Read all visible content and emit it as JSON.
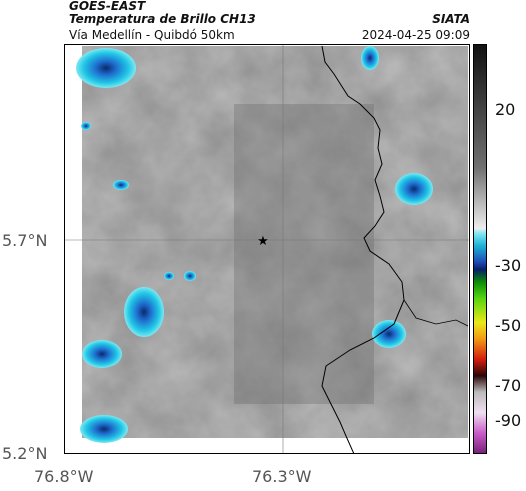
{
  "header": {
    "satellite": "GOES-EAST",
    "product": "Temperatura de Brillo CH13",
    "region": "Vía Medellín - Quibdó 50km",
    "organization": "SIATA",
    "timestamp": "2024-04-25 09:09"
  },
  "map": {
    "lat_ticks": [
      "5.7°N",
      "5.2°N"
    ],
    "lon_ticks": [
      "76.8°W",
      "76.3°W"
    ],
    "marker_icon": "star-icon",
    "border_color": "#000000"
  },
  "colorbar": {
    "labels": [
      "20",
      "-30",
      "-50",
      "-70",
      "-90"
    ]
  }
}
